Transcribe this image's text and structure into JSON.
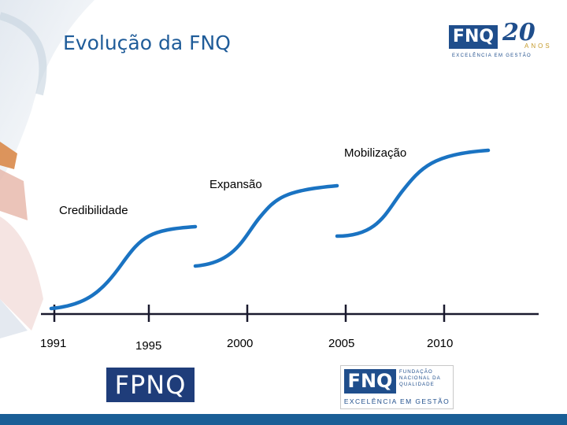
{
  "title": "Evolução da FNQ",
  "logo_top": {
    "mark": "FNQ",
    "anniversary": "20",
    "anniversary_word": "ANOS",
    "tagline": "EXCELÊNCIA EM GESTÃO"
  },
  "phases": [
    {
      "label": "Credibilidade"
    },
    {
      "label": "Expansão"
    },
    {
      "label": "Mobilização"
    }
  ],
  "years": [
    "1991",
    "1995",
    "2000",
    "2005",
    "2010"
  ],
  "logo_fpnq": {
    "text": "FPNQ"
  },
  "logo_fnq": {
    "mark": "FNQ",
    "foundation": "FUNDAÇÃO NACIONAL DA QUALIDADE",
    "tagline": "EXCELÊNCIA EM GESTÃO"
  },
  "colors": {
    "curve": "#1a73c2",
    "axis": "#1a1a2e",
    "title": "#1f5c99",
    "brand": "#1f4e8c",
    "bottom_bar": "#1a5e96"
  }
}
